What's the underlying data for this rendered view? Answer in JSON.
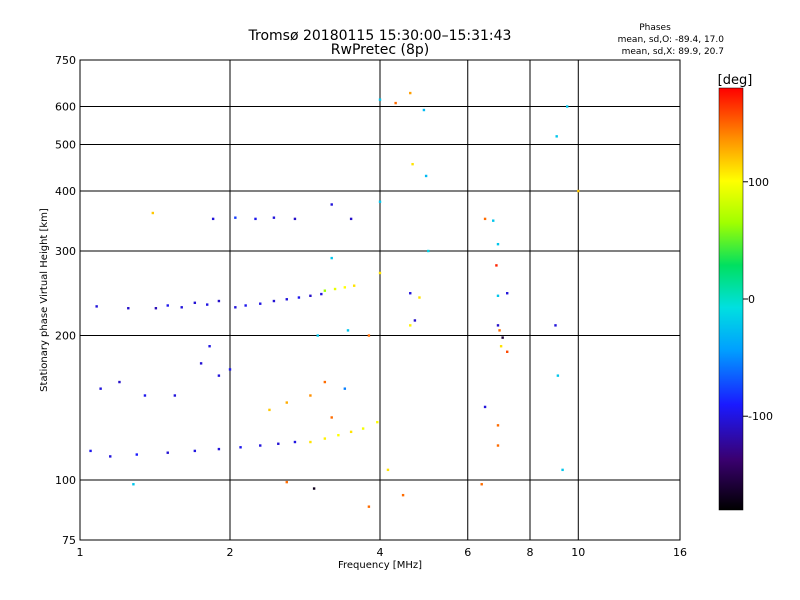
{
  "chart_data": {
    "type": "scatter",
    "title_line1": "Tromsø 20180115 15:30:00–15:31:43",
    "title_line2": "RwPretec (8p)",
    "xlabel": "Frequency [MHz]",
    "ylabel": "Stationary phase Virtual Height [km]",
    "x_scale": "log",
    "y_scale": "log",
    "xlim": [
      1,
      16
    ],
    "ylim": [
      75,
      750
    ],
    "x_ticks": [
      1,
      2,
      4,
      6,
      8,
      10,
      16
    ],
    "y_ticks": [
      75,
      100,
      200,
      300,
      400,
      500,
      600,
      750
    ],
    "grid": true,
    "stats": {
      "title": "Phases",
      "line_o": "mean, sd,O: -89.4, 17.0",
      "line_x": "mean, sd,X: 89.9, 20.7"
    },
    "colorbar": {
      "label": "[deg]",
      "ticks": [
        100,
        0,
        -100
      ],
      "range": [
        -180,
        180
      ]
    },
    "series": [
      {
        "points": [
          [
            1.08,
            230,
            -110
          ],
          [
            1.25,
            228,
            -115
          ],
          [
            1.42,
            228,
            -120
          ],
          [
            1.5,
            231,
            -105
          ],
          [
            1.6,
            229,
            -110
          ],
          [
            1.7,
            234,
            -112
          ],
          [
            1.8,
            232,
            -108
          ],
          [
            1.9,
            236,
            -115
          ],
          [
            2.05,
            229,
            -110
          ],
          [
            2.15,
            231,
            -105
          ],
          [
            2.3,
            233,
            -108
          ],
          [
            2.45,
            236,
            -112
          ],
          [
            2.6,
            238,
            -110
          ],
          [
            2.75,
            240,
            -105
          ],
          [
            2.9,
            242,
            -115
          ],
          [
            3.05,
            244,
            -110
          ],
          [
            3.1,
            248,
            60
          ],
          [
            3.25,
            250,
            90
          ],
          [
            3.4,
            252,
            100
          ],
          [
            3.55,
            254,
            110
          ],
          [
            1.85,
            350,
            -110
          ],
          [
            2.05,
            352,
            -90
          ],
          [
            2.25,
            350,
            -105
          ],
          [
            2.45,
            352,
            -110
          ],
          [
            2.7,
            350,
            -115
          ],
          [
            1.4,
            360,
            120
          ],
          [
            3.2,
            375,
            -110
          ],
          [
            3.5,
            350,
            -115
          ],
          [
            1.05,
            115,
            -105
          ],
          [
            1.15,
            112,
            -110
          ],
          [
            1.3,
            113,
            -100
          ],
          [
            1.5,
            114,
            -112
          ],
          [
            1.7,
            115,
            -108
          ],
          [
            1.9,
            116,
            -110
          ],
          [
            2.1,
            117,
            -105
          ],
          [
            2.3,
            118,
            -110
          ],
          [
            2.5,
            119,
            -112
          ],
          [
            2.7,
            120,
            -108
          ],
          [
            2.9,
            120,
            110
          ],
          [
            3.1,
            122,
            105
          ],
          [
            3.3,
            124,
            100
          ],
          [
            3.5,
            126,
            110
          ],
          [
            3.7,
            128,
            95
          ],
          [
            3.95,
            132,
            100
          ],
          [
            1.1,
            155,
            -110
          ],
          [
            1.2,
            160,
            -115
          ],
          [
            1.35,
            150,
            -105
          ],
          [
            1.55,
            150,
            -110
          ],
          [
            1.75,
            175,
            -112
          ],
          [
            1.82,
            190,
            -108
          ],
          [
            1.9,
            165,
            -110
          ],
          [
            2.0,
            170,
            -105
          ],
          [
            2.4,
            140,
            120
          ],
          [
            2.6,
            145,
            130
          ],
          [
            2.9,
            150,
            140
          ],
          [
            3.2,
            135,
            150
          ],
          [
            3.1,
            160,
            150
          ],
          [
            3.4,
            155,
            -70
          ],
          [
            3.8,
            200,
            150
          ],
          [
            4.0,
            620,
            -30
          ],
          [
            4.3,
            610,
            150
          ],
          [
            4.6,
            640,
            135
          ],
          [
            4.9,
            590,
            -40
          ],
          [
            4.65,
            455,
            110
          ],
          [
            4.95,
            430,
            -40
          ],
          [
            4.0,
            380,
            -30
          ],
          [
            5.0,
            300,
            -20
          ],
          [
            4.0,
            270,
            110
          ],
          [
            4.6,
            245,
            -110
          ],
          [
            4.8,
            240,
            110
          ],
          [
            4.6,
            210,
            105
          ],
          [
            4.7,
            215,
            -115
          ],
          [
            6.5,
            350,
            150
          ],
          [
            6.75,
            347,
            -30
          ],
          [
            6.9,
            310,
            -30
          ],
          [
            6.85,
            280,
            170
          ],
          [
            7.2,
            245,
            -110
          ],
          [
            6.9,
            242,
            -30
          ],
          [
            6.9,
            210,
            -115
          ],
          [
            6.95,
            205,
            150
          ],
          [
            7.05,
            198,
            -160
          ],
          [
            7.0,
            190,
            110
          ],
          [
            7.2,
            185,
            160
          ],
          [
            6.5,
            142,
            -110
          ],
          [
            6.9,
            130,
            150
          ],
          [
            6.9,
            118,
            150
          ],
          [
            9.05,
            520,
            -30
          ],
          [
            9.5,
            600,
            -30
          ],
          [
            9.1,
            165,
            -30
          ],
          [
            9.0,
            210,
            -110
          ],
          [
            9.3,
            105,
            -30
          ],
          [
            10.0,
            400,
            120
          ],
          [
            4.15,
            105,
            110
          ],
          [
            4.45,
            93,
            150
          ],
          [
            3.8,
            88,
            150
          ],
          [
            2.6,
            99,
            150
          ],
          [
            2.95,
            96,
            -170
          ],
          [
            6.4,
            98,
            150
          ],
          [
            1.28,
            98,
            -30
          ],
          [
            3.2,
            290,
            -30
          ],
          [
            3.0,
            200,
            -30
          ],
          [
            3.45,
            205,
            -30
          ]
        ]
      }
    ]
  }
}
